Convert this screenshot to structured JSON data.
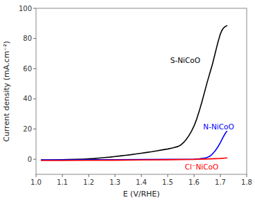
{
  "chart_data": {
    "type": "line",
    "xlabel": "E (V/RHE)",
    "ylabel": "Current density (mA.cm⁻²)",
    "xlim": [
      1.0,
      1.8
    ],
    "ylim": [
      -10,
      100
    ],
    "xticks": [
      {
        "value": 1.0,
        "label": "1.0"
      },
      1.1,
      1.2,
      1.3,
      1.4,
      1.5,
      1.6,
      1.7,
      1.8
    ],
    "yticks": [
      0,
      20,
      40,
      60,
      80,
      100
    ],
    "grid": false,
    "series": [
      {
        "color": "#000000",
        "x": [
          1.02,
          1.05,
          1.08,
          1.1,
          1.12,
          1.15,
          1.18,
          1.2,
          1.22,
          1.24,
          1.26,
          1.28,
          1.3,
          1.32,
          1.34,
          1.36,
          1.38,
          1.4,
          1.42,
          1.44,
          1.46,
          1.48,
          1.5,
          1.52,
          1.54,
          1.55,
          1.56,
          1.57,
          1.58,
          1.59,
          1.6,
          1.61,
          1.62,
          1.63,
          1.64,
          1.65,
          1.655,
          1.66,
          1.665,
          1.67,
          1.675,
          1.68,
          1.685,
          1.69,
          1.695,
          1.7,
          1.705,
          1.71,
          1.715,
          1.72,
          1.725
        ],
        "values": [
          -0.5,
          -0.5,
          -0.4,
          -0.3,
          -0.2,
          -0.1,
          0.1,
          0.3,
          0.5,
          0.8,
          1.1,
          1.4,
          1.8,
          2.2,
          2.6,
          3.0,
          3.5,
          4.0,
          4.5,
          5.0,
          5.6,
          6.2,
          6.8,
          7.5,
          8.5,
          9.5,
          11.0,
          13.0,
          15.5,
          18.5,
          22.0,
          26.5,
          32.0,
          38.0,
          44.5,
          51.0,
          54.0,
          57.0,
          60.0,
          63.0,
          66.5,
          70.0,
          73.5,
          77.0,
          80.0,
          83.0,
          85.0,
          86.5,
          87.5,
          88.0,
          88.5
        ]
      },
      {
        "color": "#0000ff",
        "x": [
          1.02,
          1.1,
          1.2,
          1.3,
          1.4,
          1.5,
          1.55,
          1.6,
          1.62,
          1.64,
          1.65,
          1.66,
          1.67,
          1.68,
          1.69,
          1.7,
          1.71,
          1.72,
          1.725
        ],
        "values": [
          -0.4,
          -0.35,
          -0.3,
          -0.25,
          -0.2,
          -0.1,
          -0.05,
          0.1,
          0.3,
          0.7,
          1.2,
          2.0,
          3.5,
          5.5,
          8.0,
          11.0,
          14.5,
          17.5,
          18.5
        ]
      },
      {
        "color": "#ff0000",
        "x": [
          1.02,
          1.1,
          1.2,
          1.3,
          1.4,
          1.5,
          1.6,
          1.7,
          1.725
        ],
        "values": [
          -0.8,
          -0.8,
          -0.75,
          -0.65,
          -0.5,
          -0.3,
          -0.1,
          0.5,
          0.9
        ]
      }
    ],
    "annotations": [
      {
        "text": "S-NiCoO",
        "x": 1.51,
        "y": 63,
        "color": "#000000"
      },
      {
        "text": "N-NiCoO",
        "x": 1.635,
        "y": 19,
        "color": "#0000ff"
      },
      {
        "text": "Cl⁻NiCoO",
        "x": 1.565,
        "y": -7.5,
        "color": "#ff0000"
      }
    ]
  }
}
